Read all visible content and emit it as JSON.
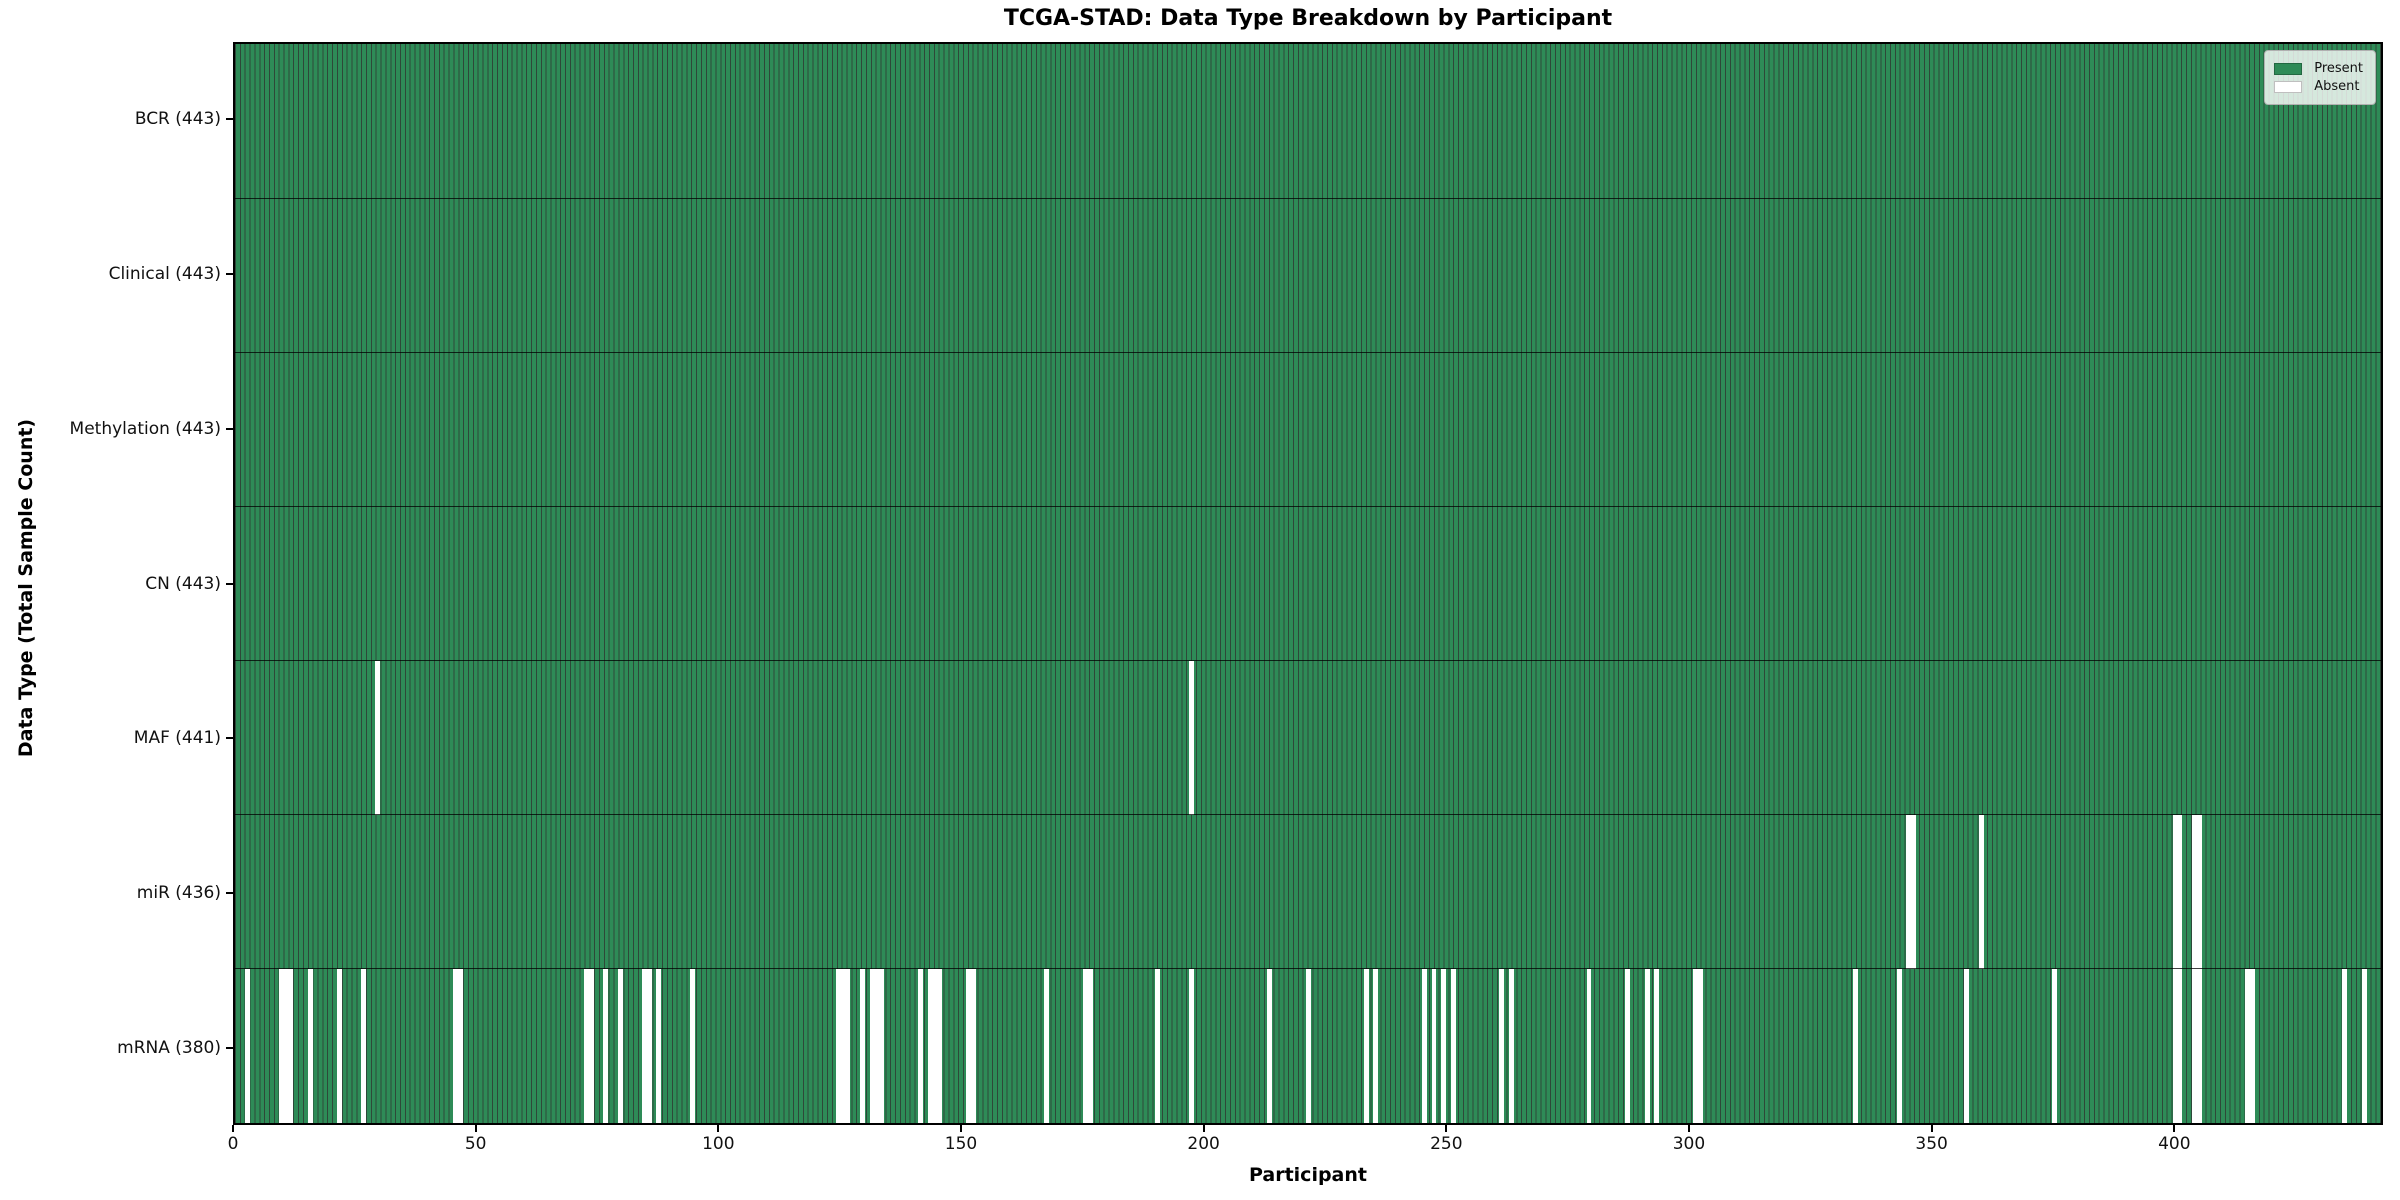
{
  "title": "TCGA-STAD: Data Type Breakdown by Participant",
  "x_axis_label": "Participant",
  "y_axis_label": "Data Type (Total Sample Count)",
  "legend": {
    "present_label": "Present",
    "absent_label": "Absent"
  },
  "colors": {
    "present": "#2e8b57",
    "absent": "#ffffff",
    "bar_edge": "#0a2816",
    "plot_border": "#000000"
  },
  "chart_data": {
    "type": "heatmap",
    "title": "TCGA-STAD: Data Type Breakdown by Participant",
    "xlabel": "Participant",
    "ylabel": "Data Type (Total Sample Count)",
    "legend_entries": [
      "Present",
      "Absent"
    ],
    "legend_position": "upper right",
    "n_participants": 443,
    "x_range": [
      0,
      443
    ],
    "x_ticks": [
      0,
      50,
      100,
      150,
      200,
      250,
      300,
      350,
      400
    ],
    "grid": false,
    "rows": [
      {
        "key": "bcr",
        "label": "BCR (443)",
        "total_present": 443,
        "absent_participants": []
      },
      {
        "key": "clinical",
        "label": "Clinical (443)",
        "total_present": 443,
        "absent_participants": []
      },
      {
        "key": "methylation",
        "label": "Methylation (443)",
        "total_present": 443,
        "absent_participants": []
      },
      {
        "key": "cn",
        "label": "CN (443)",
        "total_present": 443,
        "absent_participants": []
      },
      {
        "key": "maf",
        "label": "MAF (441)",
        "total_present": 441,
        "absent_participants": [
          29,
          197
        ]
      },
      {
        "key": "mir",
        "label": "miR (436)",
        "total_present": 436,
        "absent_participants": [
          345,
          346,
          360,
          400,
          401,
          404,
          405
        ]
      },
      {
        "key": "mrna",
        "label": "mRNA (380)",
        "total_present": 380,
        "absent_participants": [
          2,
          9,
          10,
          11,
          15,
          21,
          26,
          45,
          46,
          72,
          73,
          76,
          79,
          84,
          85,
          87,
          94,
          124,
          125,
          126,
          129,
          131,
          132,
          133,
          141,
          143,
          144,
          145,
          151,
          152,
          167,
          175,
          176,
          190,
          197,
          213,
          221,
          233,
          235,
          245,
          247,
          249,
          251,
          261,
          263,
          279,
          287,
          291,
          293,
          301,
          302,
          334,
          343,
          357,
          375,
          400,
          401,
          404,
          405,
          415,
          416,
          435,
          439
        ]
      }
    ]
  }
}
